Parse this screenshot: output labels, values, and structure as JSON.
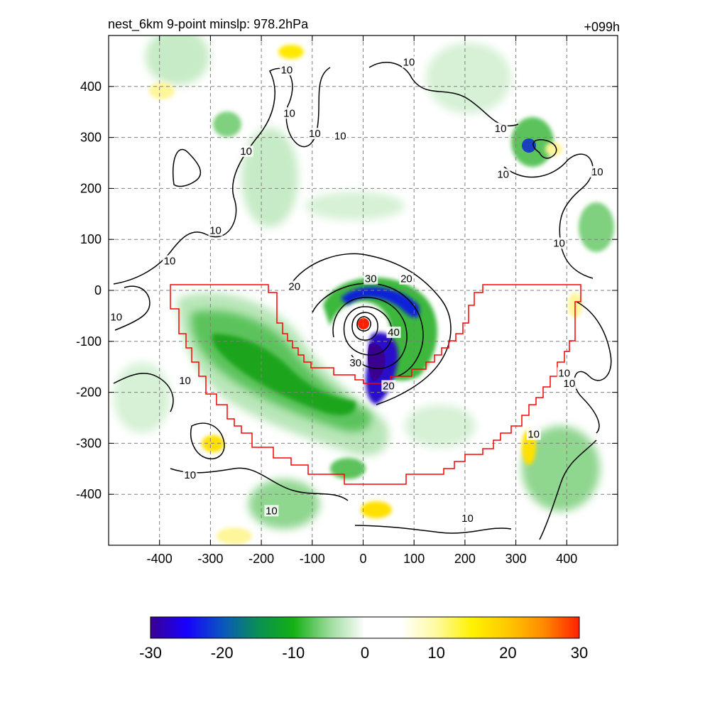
{
  "title_left": "nest_6km  9-point minslp: 978.2hPa",
  "title_right": "+099h",
  "chart_data": {
    "type": "heatmap",
    "x_ticks": [
      "-400",
      "-300",
      "-200",
      "-100",
      "0",
      "100",
      "200",
      "300",
      "400"
    ],
    "y_ticks": [
      "400",
      "300",
      "200",
      "100",
      "0",
      "-100",
      "-200",
      "-300",
      "-400"
    ],
    "xlim": [
      -500,
      500
    ],
    "ylim": [
      -500,
      500
    ],
    "grid": true,
    "contour_labels": [
      {
        "text": "10",
        "x": -150,
        "y": 430
      },
      {
        "text": "10",
        "x": -145,
        "y": 345
      },
      {
        "text": "10",
        "x": -95,
        "y": 305
      },
      {
        "text": "10",
        "x": -45,
        "y": 300
      },
      {
        "text": "10",
        "x": -230,
        "y": 270
      },
      {
        "text": "10",
        "x": -290,
        "y": 115
      },
      {
        "text": "10",
        "x": -380,
        "y": 55
      },
      {
        "text": "10",
        "x": -485,
        "y": -55
      },
      {
        "text": "10",
        "x": 90,
        "y": 445
      },
      {
        "text": "10",
        "x": 270,
        "y": 315
      },
      {
        "text": "10",
        "x": 275,
        "y": 225
      },
      {
        "text": "10",
        "x": 460,
        "y": 230
      },
      {
        "text": "10",
        "x": 385,
        "y": 90
      },
      {
        "text": "10",
        "x": 395,
        "y": -165
      },
      {
        "text": "10",
        "x": 405,
        "y": -185
      },
      {
        "text": "10",
        "x": 335,
        "y": -285
      },
      {
        "text": "10",
        "x": 205,
        "y": -450
      },
      {
        "text": "10",
        "x": -180,
        "y": -435
      },
      {
        "text": "10",
        "x": -350,
        "y": -180
      },
      {
        "text": "10",
        "x": -340,
        "y": -365
      },
      {
        "text": "20",
        "x": -135,
        "y": 5
      },
      {
        "text": "20",
        "x": 85,
        "y": 20
      },
      {
        "text": "20",
        "x": 50,
        "y": -190
      },
      {
        "text": "30",
        "x": 15,
        "y": 20
      },
      {
        "text": "30",
        "x": -15,
        "y": -145
      },
      {
        "text": "40",
        "x": 60,
        "y": -85
      }
    ],
    "colorbar": {
      "ticks": [
        "-30",
        "-20",
        "-10",
        "0",
        "10",
        "20",
        "30"
      ],
      "range": [
        -30,
        30
      ],
      "stops": [
        "#3a0090",
        "#1800ff",
        "#0a55c0",
        "#0a8f55",
        "#13b013",
        "#9adb9a",
        "#ffffff",
        "#ffffff",
        "#fffaa0",
        "#fff200",
        "#ffc800",
        "#ff8a00",
        "#ff2000"
      ]
    },
    "boundary_color": "#ff0000"
  }
}
